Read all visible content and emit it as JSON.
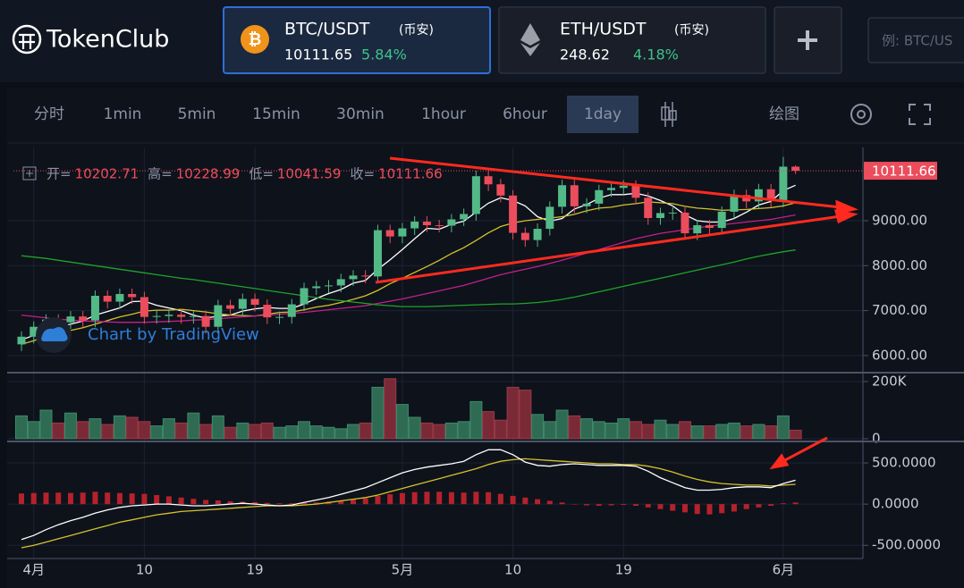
{
  "header": {
    "logo": "TokenClub",
    "tickers": [
      {
        "pair": "BTC/USDT",
        "exchange": "(币安)",
        "price": "10111.65",
        "change": "5.84%"
      },
      {
        "pair": "ETH/USDT",
        "exchange": "(币安)",
        "price": "248.62",
        "change": "4.18%"
      }
    ],
    "search_placeholder": "例: BTC/US"
  },
  "toolbar": {
    "intervals": [
      "分时",
      "1min",
      "5min",
      "15min",
      "30min",
      "1hour",
      "6hour",
      "1day"
    ],
    "draw": "绘图"
  },
  "watermark": "Chart by TradingView",
  "chart_data": {
    "type": "candlestick",
    "categories": [
      null,
      "4月",
      null,
      null,
      null,
      null,
      null,
      null,
      null,
      null,
      "10",
      null,
      null,
      null,
      null,
      null,
      null,
      null,
      null,
      "19",
      null,
      null,
      null,
      null,
      null,
      null,
      null,
      null,
      null,
      null,
      null,
      "5月",
      null,
      null,
      null,
      null,
      null,
      null,
      null,
      null,
      "10",
      null,
      null,
      null,
      null,
      null,
      null,
      null,
      null,
      "19",
      null,
      null,
      null,
      null,
      null,
      null,
      null,
      null,
      null,
      null,
      null,
      null,
      "6月",
      null
    ],
    "open": [
      6250,
      6420,
      6640,
      6800,
      6740,
      6870,
      6780,
      7330,
      7200,
      7370,
      7300,
      6860,
      6880,
      6910,
      6860,
      6880,
      6640,
      7120,
      7040,
      7260,
      7130,
      6850,
      6860,
      7140,
      7500,
      7540,
      7560,
      7700,
      7780,
      7760,
      8790,
      8650,
      8830,
      8980,
      8900,
      8890,
      9030,
      9150,
      9990,
      9810,
      9560,
      8730,
      8570,
      8820,
      9310,
      9790,
      9320,
      9380,
      9680,
      9730,
      9780,
      9510,
      9060,
      9170,
      9180,
      8720,
      8900,
      8840,
      9200,
      9570,
      9430,
      9700,
      9450,
      10202.71
    ],
    "high": [
      6540,
      6760,
      6920,
      6920,
      6990,
      6990,
      7450,
      7450,
      7490,
      7490,
      7420,
      7000,
      7030,
      7030,
      7000,
      7000,
      7240,
      7240,
      7380,
      7380,
      7250,
      6980,
      7260,
      7620,
      7660,
      7680,
      7820,
      7900,
      7900,
      8910,
      8910,
      8950,
      9100,
      9100,
      9020,
      9150,
      9270,
      10110,
      10110,
      9930,
      9680,
      8850,
      8940,
      9430,
      9910,
      9910,
      9500,
      9800,
      9850,
      9900,
      9900,
      9630,
      9290,
      9300,
      9300,
      9020,
      9020,
      9320,
      9690,
      9690,
      9820,
      9820,
      10420,
      10228.99
    ],
    "low": [
      6100,
      6270,
      6490,
      6590,
      6590,
      6630,
      6630,
      7050,
      7050,
      7150,
      6710,
      6710,
      6730,
      6710,
      6710,
      6490,
      6490,
      6890,
      6890,
      6980,
      6700,
      6700,
      6710,
      6990,
      7350,
      7390,
      7410,
      7550,
      7610,
      7610,
      8500,
      8500,
      8680,
      8750,
      8740,
      8740,
      8880,
      9000,
      9660,
      9410,
      8580,
      8420,
      8420,
      8670,
      9160,
      9170,
      9170,
      9230,
      9530,
      9580,
      9360,
      8910,
      8910,
      9020,
      8570,
      8570,
      8690,
      8690,
      9050,
      9280,
      9280,
      9300,
      9300,
      10041.59
    ],
    "close": [
      6420,
      6640,
      6800,
      6740,
      6870,
      6780,
      7330,
      7200,
      7370,
      7300,
      6860,
      6880,
      6910,
      6860,
      6880,
      6640,
      7120,
      7040,
      7260,
      7130,
      6850,
      6860,
      7140,
      7500,
      7540,
      7560,
      7700,
      7780,
      7760,
      8790,
      8650,
      8830,
      8980,
      8900,
      8890,
      9030,
      9150,
      9990,
      9810,
      9560,
      8730,
      8570,
      8820,
      9310,
      9790,
      9320,
      9380,
      9680,
      9730,
      9780,
      9510,
      9060,
      9170,
      9180,
      8720,
      8900,
      8840,
      9200,
      9570,
      9430,
      9700,
      9450,
      10202.71,
      10111.66
    ],
    "up_color": "#53b987",
    "down_color": "#eb4d5c",
    "ylim": [
      5660,
      10630
    ],
    "yticks": [
      {
        "value": 6000,
        "label": "6000.00"
      },
      {
        "value": 7000,
        "label": "7000.00"
      },
      {
        "value": 8000,
        "label": "8000.00"
      },
      {
        "value": 9000,
        "label": "9000.00"
      }
    ],
    "legend": {
      "open_label": "开=",
      "high_label": "高=",
      "low_label": "低=",
      "close_label": "收="
    },
    "series": [
      {
        "color": "#ffffff",
        "values": [
          6350,
          6450,
          6560,
          6640,
          6700,
          6770,
          6900,
          6980,
          7060,
          7200,
          7210,
          7120,
          7060,
          7000,
          6900,
          6830,
          6880,
          6900,
          6990,
          7040,
          7070,
          7050,
          7050,
          7150,
          7270,
          7380,
          7470,
          7610,
          7670,
          7920,
          8130,
          8360,
          8600,
          8830,
          8810,
          8920,
          8990,
          9190,
          9390,
          9510,
          9450,
          9330,
          9090,
          8990,
          9050,
          9260,
          9360,
          9500,
          9580,
          9580,
          9610,
          9550,
          9450,
          9330,
          9130,
          9000,
          8970,
          8970,
          9050,
          9190,
          9350,
          9430,
          9670,
          9790
        ]
      },
      {
        "color": "#d4c22b",
        "values": [
          6250,
          6330,
          6420,
          6500,
          6560,
          6620,
          6700,
          6780,
          6860,
          6920,
          6990,
          7010,
          7010,
          7030,
          7000,
          6970,
          6930,
          6900,
          6890,
          6880,
          6920,
          6960,
          6970,
          7020,
          7080,
          7120,
          7180,
          7250,
          7330,
          7450,
          7600,
          7720,
          7850,
          7980,
          8120,
          8270,
          8400,
          8560,
          8730,
          8870,
          8950,
          9000,
          9030,
          9060,
          9090,
          9140,
          9220,
          9280,
          9300,
          9350,
          9380,
          9420,
          9400,
          9380,
          9320,
          9280,
          9260,
          9230,
          9240,
          9250,
          9270,
          9290,
          9330,
          9400
        ]
      },
      {
        "color": "#c2208a",
        "values": [
          6900,
          6870,
          6840,
          6810,
          6790,
          6770,
          6760,
          6750,
          6740,
          6740,
          6740,
          6750,
          6760,
          6770,
          6790,
          6800,
          6820,
          6840,
          6860,
          6880,
          6900,
          6920,
          6940,
          6960,
          6990,
          7020,
          7050,
          7080,
          7110,
          7160,
          7210,
          7260,
          7320,
          7380,
          7440,
          7500,
          7560,
          7640,
          7720,
          7800,
          7860,
          7920,
          7980,
          8050,
          8120,
          8200,
          8280,
          8360,
          8440,
          8520,
          8600,
          8660,
          8720,
          8760,
          8800,
          8840,
          8880,
          8910,
          8940,
          8970,
          9000,
          9030,
          9080,
          9130
        ]
      },
      {
        "color": "#1fa32a",
        "values": [
          8220,
          8190,
          8160,
          8120,
          8080,
          8040,
          8000,
          7960,
          7920,
          7880,
          7840,
          7800,
          7760,
          7720,
          7690,
          7650,
          7610,
          7570,
          7530,
          7490,
          7450,
          7410,
          7370,
          7330,
          7290,
          7250,
          7220,
          7190,
          7160,
          7130,
          7110,
          7090,
          7090,
          7090,
          7100,
          7110,
          7120,
          7130,
          7140,
          7150,
          7150,
          7160,
          7180,
          7210,
          7250,
          7300,
          7360,
          7420,
          7480,
          7540,
          7600,
          7660,
          7720,
          7780,
          7840,
          7900,
          7960,
          8020,
          8080,
          8150,
          8210,
          8260,
          8310,
          8350
        ]
      }
    ],
    "volume": {
      "values": [
        80,
        60,
        100,
        55,
        90,
        60,
        70,
        50,
        80,
        75,
        60,
        45,
        70,
        55,
        90,
        50,
        80,
        40,
        55,
        50,
        55,
        40,
        45,
        60,
        45,
        40,
        35,
        50,
        55,
        180,
        210,
        120,
        75,
        55,
        50,
        55,
        60,
        130,
        95,
        65,
        180,
        170,
        85,
        60,
        100,
        80,
        70,
        60,
        55,
        70,
        60,
        50,
        65,
        50,
        60,
        45,
        45,
        50,
        55,
        45,
        50,
        45,
        80,
        30
      ],
      "up_color": "#2f6b53",
      "down_color": "#7a2a36",
      "ylim": [
        0,
        220
      ],
      "yticks": [
        0,
        {
          "value": 200,
          "label": "200K"
        }
      ]
    },
    "macd": {
      "histogram": [
        130,
        135,
        140,
        140,
        135,
        140,
        150,
        140,
        135,
        130,
        125,
        110,
        95,
        80,
        65,
        50,
        45,
        35,
        30,
        25,
        15,
        10,
        10,
        15,
        20,
        30,
        40,
        55,
        70,
        100,
        120,
        135,
        145,
        150,
        150,
        145,
        140,
        150,
        145,
        125,
        100,
        80,
        60,
        40,
        20,
        -5,
        -15,
        -20,
        -15,
        -10,
        -20,
        -40,
        -60,
        -80,
        -100,
        -120,
        -125,
        -110,
        -90,
        -60,
        -40,
        -20,
        10,
        20
      ],
      "histogram_color": "#b5222b",
      "dif": [
        -430,
        -380,
        -310,
        -250,
        -200,
        -160,
        -110,
        -70,
        -40,
        -20,
        -10,
        0,
        0,
        -10,
        -20,
        -20,
        -10,
        0,
        10,
        0,
        -10,
        -20,
        -10,
        20,
        50,
        80,
        120,
        160,
        200,
        260,
        320,
        380,
        420,
        450,
        470,
        490,
        520,
        600,
        660,
        660,
        600,
        510,
        470,
        460,
        480,
        490,
        480,
        470,
        470,
        470,
        460,
        400,
        320,
        260,
        200,
        170,
        170,
        180,
        200,
        210,
        210,
        200,
        250,
        290
      ],
      "dif_color": "#ffffff",
      "dea": [
        -530,
        -500,
        -460,
        -420,
        -380,
        -340,
        -300,
        -260,
        -220,
        -190,
        -160,
        -130,
        -110,
        -90,
        -80,
        -70,
        -60,
        -50,
        -40,
        -30,
        -20,
        -20,
        -20,
        -10,
        0,
        20,
        40,
        60,
        80,
        110,
        150,
        190,
        230,
        270,
        310,
        350,
        390,
        430,
        480,
        520,
        540,
        550,
        540,
        530,
        520,
        510,
        500,
        490,
        490,
        480,
        480,
        460,
        430,
        390,
        340,
        300,
        270,
        250,
        240,
        230,
        230,
        220,
        230,
        240
      ],
      "dea_color": "#d4c22b",
      "ylim": [
        -660,
        750
      ],
      "yticks": [
        {
          "value": -500,
          "label": "-500.0000"
        },
        {
          "value": 0,
          "label": "0.0000"
        },
        {
          "value": 500,
          "label": "500.0000"
        }
      ]
    }
  }
}
